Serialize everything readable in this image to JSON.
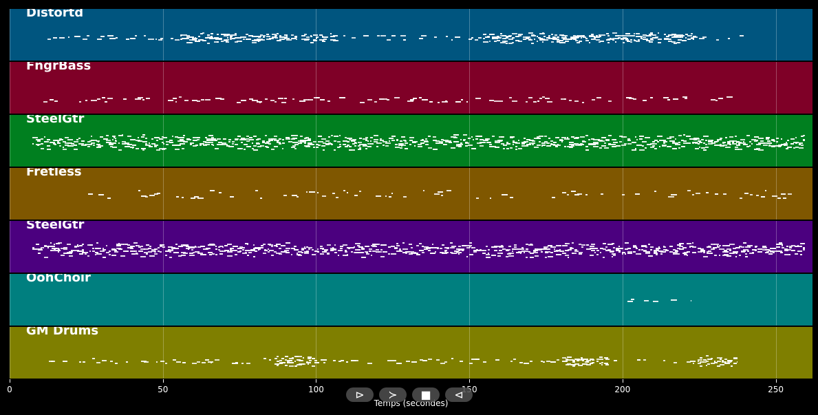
{
  "colors": {
    "background": "#000000",
    "note": "#ffffff",
    "grid": "#ffffff"
  },
  "axis": {
    "min": 0,
    "max": 262,
    "ticks": [
      0,
      50,
      100,
      150,
      200,
      250
    ],
    "tick_labels": [
      "0",
      "50",
      "100",
      "150",
      "200",
      "250"
    ],
    "label": "Temps (secondes)"
  },
  "tracks": [
    {
      "name": "Distortd",
      "color": "#00557f",
      "start": 9.5,
      "end": 240.5,
      "pitch": 0.55,
      "spread": 0.05,
      "density": 0.55,
      "dense_regions": [
        [
          54,
          106
        ],
        [
          154,
          224
        ]
      ]
    },
    {
      "name": "FngrBass",
      "color": "#7f0027",
      "start": 9.5,
      "end": 240.5,
      "pitch": 0.72,
      "spread": 0.05,
      "density": 0.6,
      "dense_regions": []
    },
    {
      "name": "SteelGtr",
      "color": "#007f1f",
      "start": 7.5,
      "end": 259.5,
      "pitch": 0.52,
      "spread": 0.1,
      "density": 0.92,
      "dense_regions": [
        [
          7,
          259
        ]
      ]
    },
    {
      "name": "Fretless",
      "color": "#7f5700",
      "start": 25.5,
      "end": 257.5,
      "pitch": 0.5,
      "spread": 0.08,
      "density": 0.4,
      "dense_regions": []
    },
    {
      "name": "SteelGtr",
      "color": "#4b007f",
      "start": 7.5,
      "end": 259.5,
      "pitch": 0.55,
      "spread": 0.09,
      "density": 0.92,
      "dense_regions": [
        [
          7,
          259
        ]
      ]
    },
    {
      "name": "OohChoir",
      "color": "#007f7f",
      "start": 197.5,
      "end": 222.5,
      "pitch": 0.5,
      "spread": 0.02,
      "density": 0.45,
      "dense_regions": []
    },
    {
      "name": "GM Drums",
      "color": "#7f7f00",
      "start": 11,
      "end": 237.5,
      "pitch": 0.65,
      "spread": 0.05,
      "density": 0.55,
      "dense_regions": [
        [
          86,
          100
        ],
        [
          180,
          195
        ],
        [
          224,
          237
        ]
      ]
    }
  ],
  "controls": [
    {
      "name": "rewind-button",
      "glyph": "⊳"
    },
    {
      "name": "play-button",
      "glyph": "≻"
    },
    {
      "name": "stop-button",
      "glyph": "■"
    },
    {
      "name": "back-button",
      "glyph": "⊲"
    }
  ]
}
